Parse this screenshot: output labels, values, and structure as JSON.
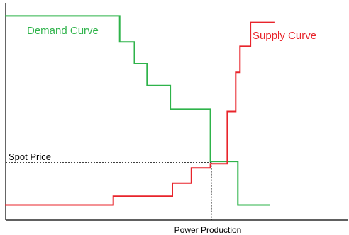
{
  "chart_data": {
    "type": "line",
    "title": "",
    "xlabel": "Power Production",
    "ylabel": "",
    "grid": false,
    "annotations": [
      {
        "name": "spot-price-label",
        "text": "Spot Price"
      }
    ],
    "series": [
      {
        "name": "Demand Curve",
        "color": "#2eb34a",
        "step": true,
        "points": [
          [
            0,
            94
          ],
          [
            54,
            94
          ],
          [
            54,
            82
          ],
          [
            61,
            82
          ],
          [
            61,
            72
          ],
          [
            67,
            72
          ],
          [
            67,
            62
          ],
          [
            78,
            62
          ],
          [
            78,
            51
          ],
          [
            97,
            51
          ],
          [
            97,
            27
          ],
          [
            110,
            27
          ],
          [
            110,
            7
          ],
          [
            125,
            7
          ]
        ]
      },
      {
        "name": "Supply Curve",
        "color": "#e8242b",
        "step": true,
        "points": [
          [
            0,
            7
          ],
          [
            51,
            7
          ],
          [
            51,
            11
          ],
          [
            79,
            11
          ],
          [
            79,
            17
          ],
          [
            88,
            17
          ],
          [
            88,
            24
          ],
          [
            97,
            24
          ],
          [
            97,
            26
          ],
          [
            105,
            26
          ],
          [
            105,
            50
          ],
          [
            109,
            50
          ],
          [
            109,
            68
          ],
          [
            111,
            68
          ],
          [
            111,
            80
          ],
          [
            116,
            80
          ],
          [
            116,
            91
          ],
          [
            127,
            91
          ]
        ]
      }
    ],
    "spot_price": {
      "x": 97.5,
      "y": 26.5
    },
    "xlim": [
      0,
      162
    ],
    "ylim": [
      0,
      100
    ]
  }
}
